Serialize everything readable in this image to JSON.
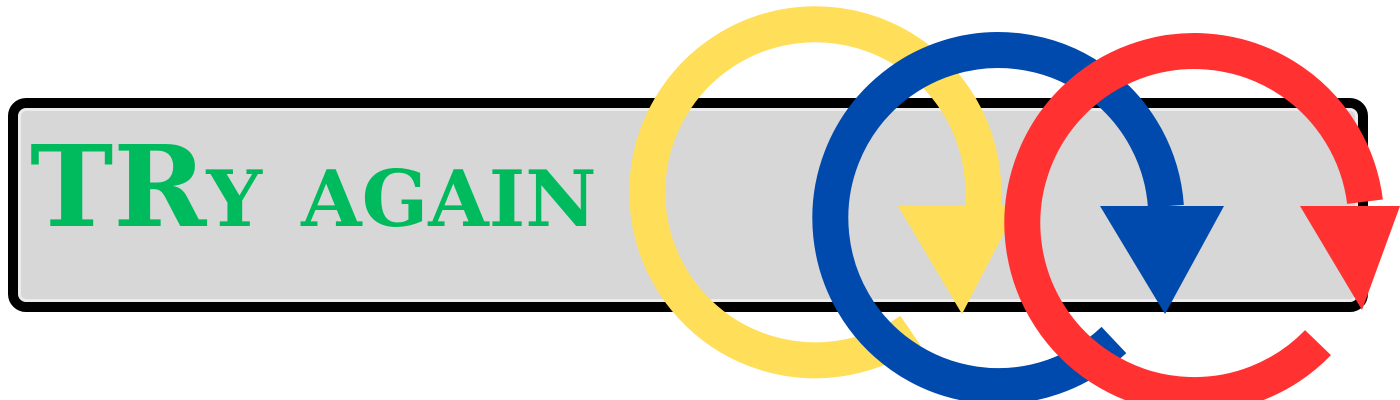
{
  "button": {
    "label": "TRy again"
  },
  "colors": {
    "label_text": "#00bb5d",
    "bar_fill": "#d7d7d7",
    "bar_border": "#000000",
    "ring_yellow": "#ffde59",
    "ring_blue": "#004aad",
    "ring_red": "#ff3131"
  },
  "icons": [
    "retry-arrow-yellow-icon",
    "retry-arrow-blue-icon",
    "retry-arrow-red-icon"
  ]
}
